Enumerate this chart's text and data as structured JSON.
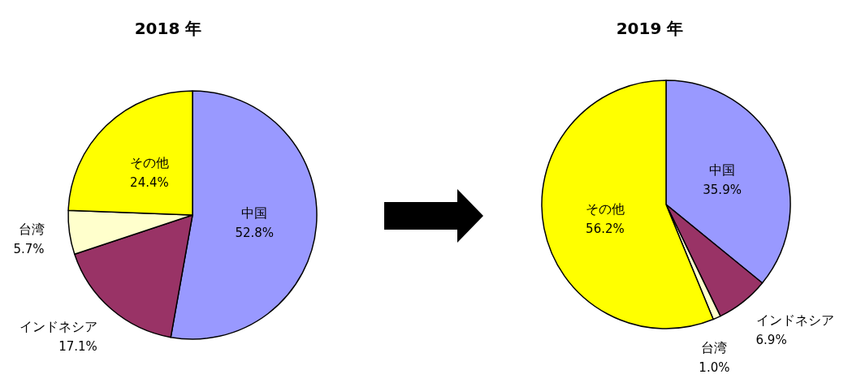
{
  "chart_data": [
    {
      "type": "pie",
      "title": "2018 年",
      "categories": [
        "中国",
        "インドネシア",
        "台湾",
        "その他"
      ],
      "values": [
        52.8,
        17.1,
        5.7,
        24.4
      ],
      "colors": [
        "#9999ff",
        "#993366",
        "#ffffcc",
        "#ffff00"
      ],
      "value_labels": [
        "52.8%",
        "17.1%",
        "5.7%",
        "24.4%"
      ]
    },
    {
      "type": "pie",
      "title": "2019 年",
      "categories": [
        "中国",
        "インドネシア",
        "台湾",
        "その他"
      ],
      "values": [
        35.9,
        6.9,
        1.0,
        56.2
      ],
      "colors": [
        "#9999ff",
        "#993366",
        "#ffffcc",
        "#ffff00"
      ],
      "value_labels": [
        "35.9%",
        "6.9%",
        "1.0%",
        "56.2%"
      ]
    }
  ]
}
